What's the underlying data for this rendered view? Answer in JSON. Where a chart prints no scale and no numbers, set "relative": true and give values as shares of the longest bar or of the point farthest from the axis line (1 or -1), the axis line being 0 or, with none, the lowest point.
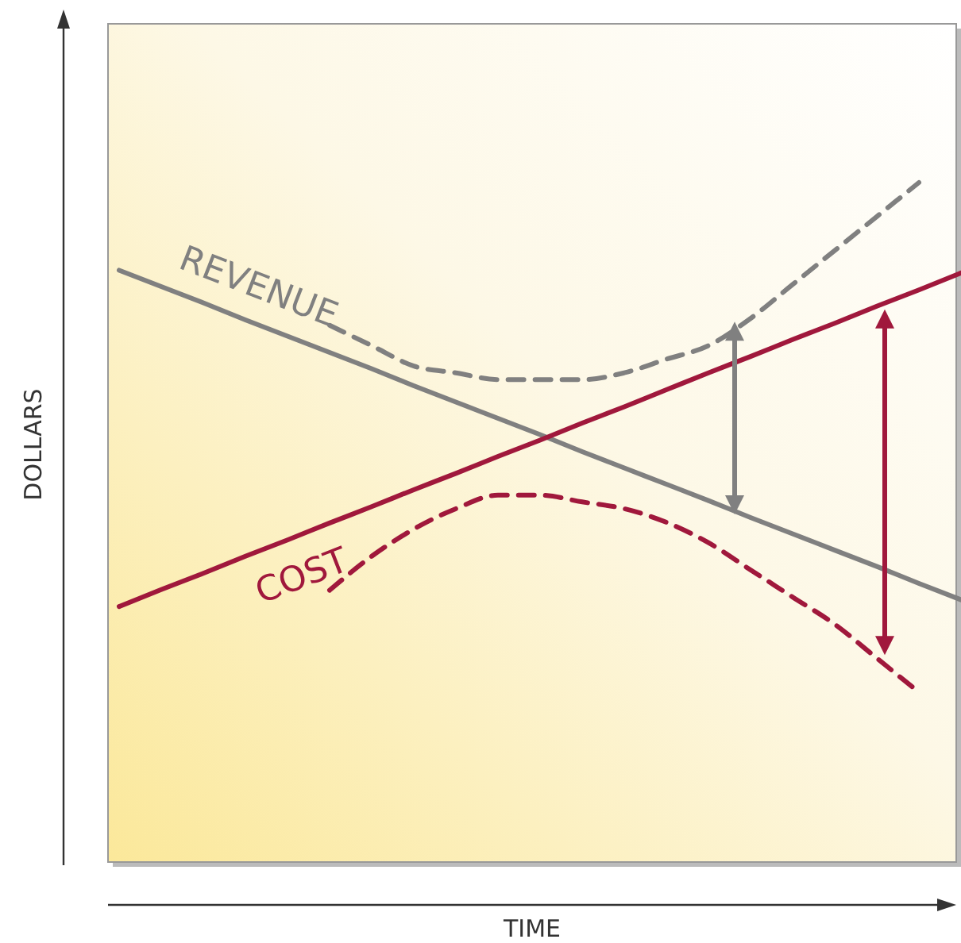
{
  "chart_data": {
    "type": "line",
    "relative": true,
    "xlabel": "TIME",
    "ylabel": "DOLLARS",
    "categories": [
      null,
      null,
      null,
      null,
      null,
      null,
      null,
      null,
      null,
      null,
      null,
      null,
      null,
      null,
      null,
      null,
      null,
      null,
      null,
      null,
      null
    ],
    "series": [
      {
        "name": "REVENUE",
        "color": "#808080",
        "line_style": "solid",
        "values": [
          0.871,
          0.847,
          0.823,
          0.798,
          0.774,
          0.75,
          0.726,
          0.701,
          0.677,
          0.653,
          0.629,
          0.604,
          0.58,
          0.556,
          0.532,
          0.507,
          0.483,
          0.459,
          0.435,
          0.41,
          0.386
        ]
      },
      {
        "name": "COST",
        "color": "#a0183c",
        "line_style": "solid",
        "values": [
          0.376,
          0.401,
          0.425,
          0.45,
          0.474,
          0.499,
          0.523,
          0.548,
          0.572,
          0.597,
          0.621,
          0.646,
          0.67,
          0.695,
          0.72,
          0.744,
          0.769,
          0.793,
          0.818,
          0.842,
          0.867
        ]
      },
      {
        "color": "#808080",
        "line_style": "dashed",
        "values": [
          null,
          null,
          null,
          null,
          null,
          0.79,
          0.76,
          0.73,
          0.72,
          0.71,
          0.71,
          0.71,
          0.72,
          0.74,
          0.76,
          0.8,
          0.85,
          0.9,
          0.95,
          1.0,
          null
        ]
      },
      {
        "color": "#a0183c",
        "line_style": "dashed",
        "values": [
          null,
          null,
          null,
          null,
          null,
          0.4,
          0.45,
          0.49,
          0.52,
          0.54,
          0.54,
          0.53,
          0.52,
          0.5,
          0.47,
          0.43,
          0.39,
          0.35,
          0.3,
          0.25,
          null
        ]
      }
    ]
  }
}
